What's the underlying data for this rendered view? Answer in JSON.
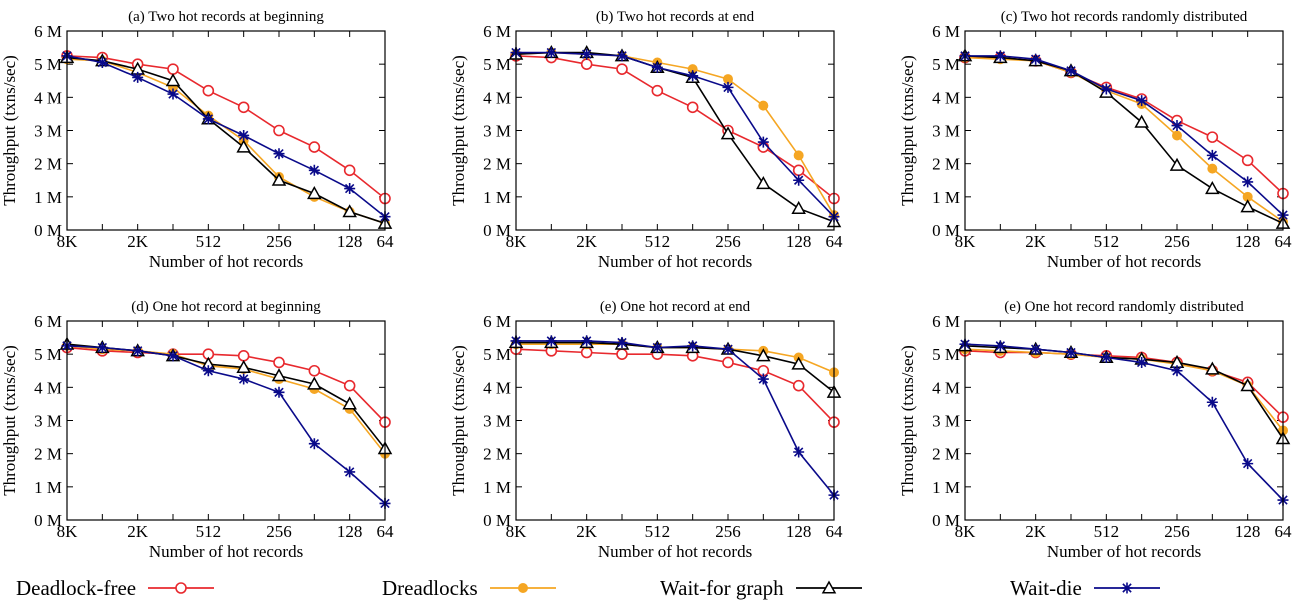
{
  "legend": [
    {
      "name": "Deadlock-free",
      "color": "#e8292e",
      "marker": "circle-open"
    },
    {
      "name": "Dreadlocks",
      "color": "#f5a623",
      "marker": "circle-filled"
    },
    {
      "name": "Wait-for graph",
      "color": "#000000",
      "marker": "triangle-open"
    },
    {
      "name": "Wait-die",
      "color": "#0a0a8a",
      "marker": "star"
    }
  ],
  "chart_data": [
    {
      "type": "line",
      "title": "(a) Two hot records at beginning",
      "xlabel": "Number of hot records",
      "ylabel": "Throughput (txns/sec)",
      "x_ticks": [
        "8K",
        "2K",
        "512",
        "256",
        "128",
        "64"
      ],
      "y_ticks": [
        "0 M",
        "1 M",
        "2 M",
        "3 M",
        "4 M",
        "5 M",
        "6 M"
      ],
      "ylim": [
        0,
        6
      ],
      "x_points": [
        "8K",
        "4K",
        "2K",
        "1K",
        "512",
        "384",
        "256",
        "192",
        "128",
        "64"
      ],
      "series": [
        {
          "name": "Deadlock-free",
          "values": [
            5.25,
            5.2,
            5.0,
            4.85,
            4.2,
            3.7,
            3.0,
            2.5,
            1.8,
            0.95
          ]
        },
        {
          "name": "Dreadlocks",
          "values": [
            5.15,
            5.1,
            4.75,
            4.3,
            3.45,
            2.7,
            1.6,
            1.0,
            0.55,
            0.2
          ]
        },
        {
          "name": "Wait-for graph",
          "values": [
            5.2,
            5.1,
            4.85,
            4.5,
            3.35,
            2.5,
            1.5,
            1.1,
            0.55,
            0.2
          ]
        },
        {
          "name": "Wait-die",
          "values": [
            5.25,
            5.05,
            4.6,
            4.1,
            3.35,
            2.85,
            2.3,
            1.8,
            1.25,
            0.4
          ]
        }
      ]
    },
    {
      "type": "line",
      "title": "(b) Two hot records at end",
      "xlabel": "Number of hot records",
      "ylabel": "Throughput (txns/sec)",
      "x_ticks": [
        "8K",
        "2K",
        "512",
        "256",
        "128",
        "64"
      ],
      "y_ticks": [
        "0 M",
        "1 M",
        "2 M",
        "3 M",
        "4 M",
        "5 M",
        "6 M"
      ],
      "ylim": [
        0,
        6
      ],
      "x_points": [
        "8K",
        "4K",
        "2K",
        "1K",
        "512",
        "384",
        "256",
        "192",
        "128",
        "64"
      ],
      "series": [
        {
          "name": "Deadlock-free",
          "values": [
            5.25,
            5.2,
            5.0,
            4.85,
            4.2,
            3.7,
            3.0,
            2.5,
            1.8,
            0.95
          ]
        },
        {
          "name": "Dreadlocks",
          "values": [
            5.3,
            5.35,
            5.3,
            5.25,
            5.05,
            4.85,
            4.55,
            3.75,
            2.25,
            0.45
          ]
        },
        {
          "name": "Wait-for graph",
          "values": [
            5.3,
            5.35,
            5.35,
            5.25,
            4.9,
            4.6,
            2.9,
            1.4,
            0.65,
            0.25
          ]
        },
        {
          "name": "Wait-die",
          "values": [
            5.35,
            5.35,
            5.3,
            5.25,
            4.9,
            4.65,
            4.3,
            2.65,
            1.5,
            0.4
          ]
        }
      ]
    },
    {
      "type": "line",
      "title": "(c) Two hot records randomly distributed",
      "xlabel": "Number of hot records",
      "ylabel": "Throughput (txns/sec)",
      "x_ticks": [
        "8K",
        "2K",
        "512",
        "256",
        "128",
        "64"
      ],
      "y_ticks": [
        "0 M",
        "1 M",
        "2 M",
        "3 M",
        "4 M",
        "5 M",
        "6 M"
      ],
      "ylim": [
        0,
        6
      ],
      "x_points": [
        "8K",
        "4K",
        "2K",
        "1K",
        "512",
        "384",
        "256",
        "192",
        "128",
        "64"
      ],
      "series": [
        {
          "name": "Deadlock-free",
          "values": [
            5.2,
            5.2,
            5.1,
            4.75,
            4.3,
            3.95,
            3.3,
            2.8,
            2.1,
            1.1
          ]
        },
        {
          "name": "Dreadlocks",
          "values": [
            5.2,
            5.15,
            5.1,
            4.75,
            4.2,
            3.8,
            2.85,
            1.85,
            1.0,
            0.25
          ]
        },
        {
          "name": "Wait-for graph",
          "values": [
            5.25,
            5.2,
            5.1,
            4.8,
            4.15,
            3.25,
            1.95,
            1.25,
            0.7,
            0.2
          ]
        },
        {
          "name": "Wait-die",
          "values": [
            5.25,
            5.25,
            5.15,
            4.8,
            4.25,
            3.9,
            3.15,
            2.25,
            1.45,
            0.45
          ]
        }
      ]
    },
    {
      "type": "line",
      "title": "(d) One hot record at beginning",
      "xlabel": "Number of hot records",
      "ylabel": "Throughput (txns/sec)",
      "x_ticks": [
        "8K",
        "2K",
        "512",
        "256",
        "128",
        "64"
      ],
      "y_ticks": [
        "0 M",
        "1 M",
        "2 M",
        "3 M",
        "4 M",
        "5 M",
        "6 M"
      ],
      "ylim": [
        0,
        6
      ],
      "x_points": [
        "8K",
        "4K",
        "2K",
        "1K",
        "512",
        "384",
        "256",
        "192",
        "128",
        "64"
      ],
      "series": [
        {
          "name": "Deadlock-free",
          "values": [
            5.2,
            5.1,
            5.05,
            5.0,
            5.0,
            4.95,
            4.75,
            4.5,
            4.05,
            2.95
          ]
        },
        {
          "name": "Dreadlocks",
          "values": [
            5.25,
            5.15,
            5.1,
            5.0,
            4.65,
            4.55,
            4.25,
            3.95,
            3.35,
            2.0
          ]
        },
        {
          "name": "Wait-for graph",
          "values": [
            5.3,
            5.2,
            5.1,
            4.95,
            4.7,
            4.6,
            4.35,
            4.1,
            3.5,
            2.15
          ]
        },
        {
          "name": "Wait-die",
          "values": [
            5.25,
            5.2,
            5.1,
            4.95,
            4.5,
            4.25,
            3.85,
            2.3,
            1.45,
            0.5
          ]
        }
      ]
    },
    {
      "type": "line",
      "title": "(e) One hot record at end",
      "xlabel": "Number of hot records",
      "ylabel": "Throughput (txns/sec)",
      "x_ticks": [
        "8K",
        "2K",
        "512",
        "256",
        "128",
        "64"
      ],
      "y_ticks": [
        "0 M",
        "1 M",
        "2 M",
        "3 M",
        "4 M",
        "5 M",
        "6 M"
      ],
      "ylim": [
        0,
        6
      ],
      "x_points": [
        "8K",
        "4K",
        "2K",
        "1K",
        "512",
        "384",
        "256",
        "192",
        "128",
        "64"
      ],
      "series": [
        {
          "name": "Deadlock-free",
          "values": [
            5.15,
            5.1,
            5.05,
            5.0,
            5.0,
            4.95,
            4.75,
            4.5,
            4.05,
            2.95
          ]
        },
        {
          "name": "Dreadlocks",
          "values": [
            5.3,
            5.3,
            5.3,
            5.3,
            5.2,
            5.2,
            5.15,
            5.1,
            4.9,
            4.45
          ]
        },
        {
          "name": "Wait-for graph",
          "values": [
            5.35,
            5.35,
            5.35,
            5.3,
            5.2,
            5.2,
            5.15,
            4.95,
            4.7,
            3.85
          ]
        },
        {
          "name": "Wait-die",
          "values": [
            5.4,
            5.4,
            5.4,
            5.35,
            5.2,
            5.25,
            5.15,
            4.25,
            2.05,
            0.75
          ]
        }
      ]
    },
    {
      "type": "line",
      "title": "(e) One hot record randomly distributed",
      "xlabel": "Number of hot records",
      "ylabel": "Throughput (txns/sec)",
      "x_ticks": [
        "8K",
        "2K",
        "512",
        "256",
        "128",
        "64"
      ],
      "y_ticks": [
        "0 M",
        "1 M",
        "2 M",
        "3 M",
        "4 M",
        "5 M",
        "6 M"
      ],
      "ylim": [
        0,
        6
      ],
      "x_points": [
        "8K",
        "4K",
        "2K",
        "1K",
        "512",
        "384",
        "256",
        "192",
        "128",
        "64"
      ],
      "series": [
        {
          "name": "Deadlock-free",
          "values": [
            5.1,
            5.05,
            5.05,
            5.0,
            4.95,
            4.9,
            4.75,
            4.5,
            4.15,
            3.1
          ]
        },
        {
          "name": "Dreadlocks",
          "values": [
            5.15,
            5.1,
            5.05,
            5.0,
            4.9,
            4.85,
            4.7,
            4.5,
            4.05,
            2.7
          ]
        },
        {
          "name": "Wait-for graph",
          "values": [
            5.25,
            5.2,
            5.15,
            5.05,
            4.9,
            4.85,
            4.75,
            4.55,
            4.05,
            2.45
          ]
        },
        {
          "name": "Wait-die",
          "values": [
            5.3,
            5.25,
            5.15,
            5.05,
            4.9,
            4.75,
            4.5,
            3.55,
            1.7,
            0.6
          ]
        }
      ]
    }
  ]
}
